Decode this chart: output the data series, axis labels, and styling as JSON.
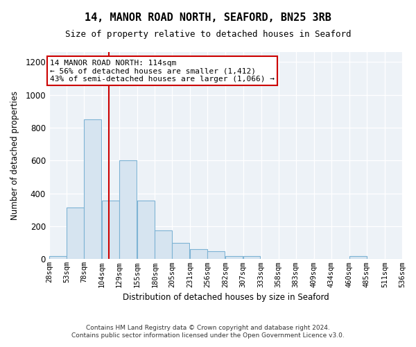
{
  "title1": "14, MANOR ROAD NORTH, SEAFORD, BN25 3RB",
  "title2": "Size of property relative to detached houses in Seaford",
  "xlabel": "Distribution of detached houses by size in Seaford",
  "ylabel": "Number of detached properties",
  "annotation_line1": "14 MANOR ROAD NORTH: 114sqm",
  "annotation_line2": "← 56% of detached houses are smaller (1,412)",
  "annotation_line3": "43% of semi-detached houses are larger (1,066) →",
  "footer1": "Contains HM Land Registry data © Crown copyright and database right 2024.",
  "footer2": "Contains public sector information licensed under the Open Government Licence v3.0.",
  "bar_color": "#d6e4f0",
  "bar_edgecolor": "#7db3d4",
  "redline_color": "#cc0000",
  "redline_x": 114,
  "bins": [
    28,
    53,
    78,
    104,
    129,
    155,
    180,
    205,
    231,
    256,
    282,
    307,
    333,
    358,
    383,
    409,
    434,
    460,
    485,
    511,
    536
  ],
  "values": [
    18,
    315,
    850,
    355,
    600,
    355,
    175,
    100,
    60,
    50,
    20,
    18,
    0,
    0,
    0,
    0,
    0,
    18,
    0,
    0
  ],
  "ylim": [
    0,
    1260
  ],
  "yticks": [
    0,
    200,
    400,
    600,
    800,
    1000,
    1200
  ],
  "plot_bg": "#edf2f7",
  "grid_color": "#ffffff"
}
